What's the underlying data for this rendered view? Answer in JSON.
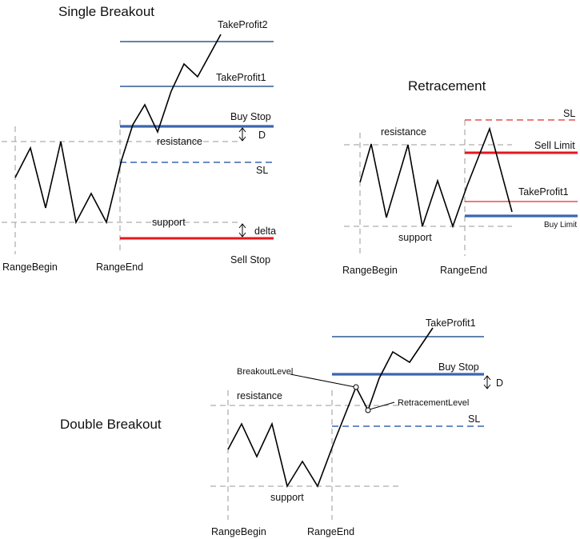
{
  "single": {
    "title": "Single Breakout",
    "labels": {
      "take_profit_2": "TakeProfit2",
      "take_profit_1": "TakeProfit1",
      "buy_stop": "Buy Stop",
      "d": "D",
      "resistance": "resistance",
      "sl": "SL",
      "support": "support",
      "delta": "delta",
      "sell_stop": "Sell Stop",
      "range_begin": "RangeBegin",
      "range_end": "RangeEnd"
    }
  },
  "retracement": {
    "title": "Retracement",
    "labels": {
      "sl": "SL",
      "resistance": "resistance",
      "sell_limit": "Sell Limit",
      "take_profit_1": "TakeProfit1",
      "buy_limit": "Buy Limit",
      "support": "support",
      "range_begin": "RangeBegin",
      "range_end": "RangeEnd"
    }
  },
  "double": {
    "title": "Double Breakout",
    "labels": {
      "take_profit_1": "TakeProfit1",
      "breakout_level": "BreakoutLevel",
      "buy_stop": "Buy Stop",
      "d": "D",
      "resistance": "resistance",
      "retracement_level": "RetracementLevel",
      "sl": "SL",
      "support": "support",
      "range_begin": "RangeBegin",
      "range_end": "RangeEnd"
    }
  },
  "colors": {
    "take_profit_line": "#2f5b93",
    "order_line_blue": "#3a66b0",
    "order_line_red": "#e8161b",
    "range_guide": "#9a9a9a",
    "price_path": "#000000"
  }
}
